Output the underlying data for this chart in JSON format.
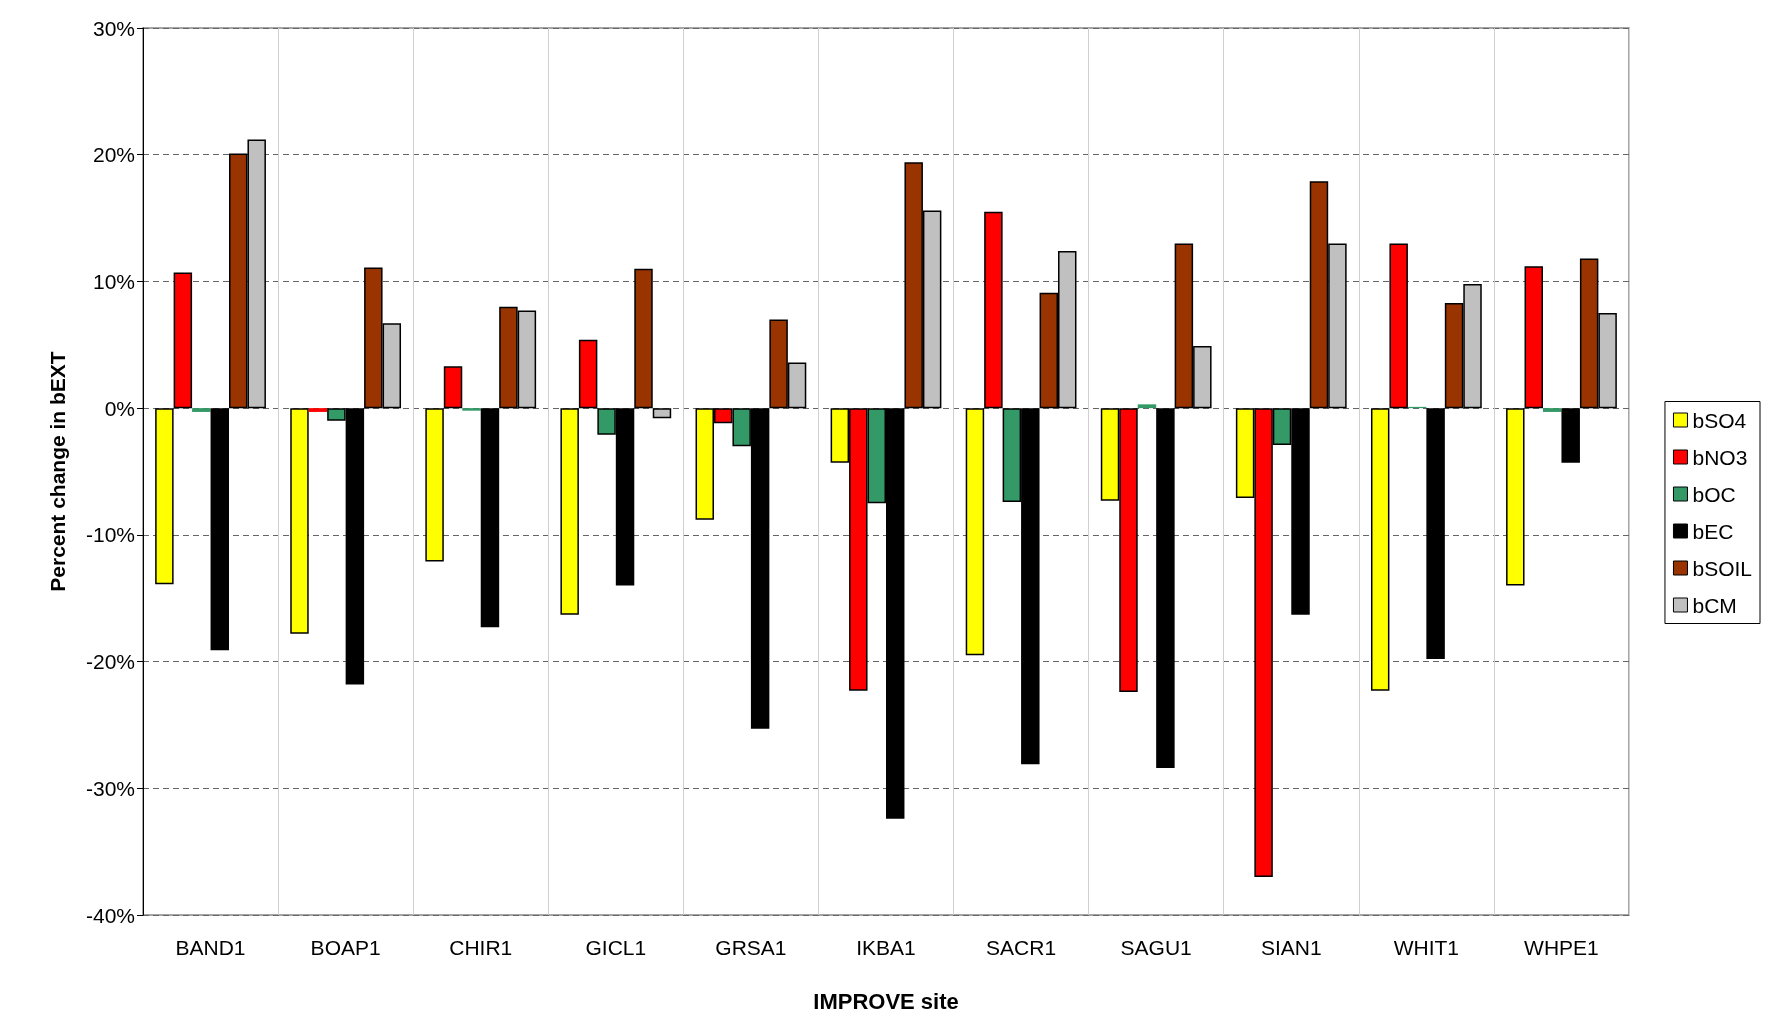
{
  "chart_data": {
    "type": "bar",
    "xlabel": "IMPROVE site",
    "ylabel": "Percent change in bEXT",
    "categories": [
      "BAND1",
      "BOAP1",
      "CHIR1",
      "GICL1",
      "GRSA1",
      "IKBA1",
      "SACR1",
      "SAGU1",
      "SIAN1",
      "WHIT1",
      "WHPE1"
    ],
    "series": [
      {
        "name": "bSO4",
        "color": "#ffff00",
        "values": [
          -13.9,
          -17.8,
          -12.1,
          -16.3,
          -8.8,
          -4.3,
          -19.5,
          -7.3,
          -7.1,
          -22.3,
          -14.0
        ]
      },
      {
        "name": "bNO3",
        "color": "#ff0000",
        "values": [
          10.7,
          -0.3,
          3.3,
          5.4,
          -1.2,
          -22.3,
          15.5,
          -22.4,
          -37.0,
          13.0,
          11.2
        ]
      },
      {
        "name": "bOC",
        "color": "#339966",
        "values": [
          -0.3,
          -1.0,
          -0.2,
          -2.1,
          -3.0,
          -7.5,
          -7.4,
          0.3,
          -2.9,
          0.1,
          -0.3
        ]
      },
      {
        "name": "bEC",
        "color": "#000000",
        "values": [
          -19.1,
          -21.8,
          -17.3,
          -14.0,
          -25.3,
          -32.4,
          -28.1,
          -28.4,
          -16.3,
          -19.8,
          -4.3
        ]
      },
      {
        "name": "bSOIL",
        "color": "#993300",
        "values": [
          20.1,
          11.1,
          8.0,
          11.0,
          7.0,
          19.4,
          9.1,
          13.0,
          17.9,
          8.3,
          11.8
        ]
      },
      {
        "name": "bCM",
        "color": "#c0c0c0",
        "values": [
          21.2,
          6.7,
          7.7,
          -0.8,
          3.6,
          15.6,
          12.4,
          4.9,
          13.0,
          9.8,
          7.5
        ]
      }
    ],
    "ylim": [
      -40,
      30
    ],
    "yticks": [
      {
        "value": -40,
        "label": "-40%"
      },
      {
        "value": -30,
        "label": "-30%"
      },
      {
        "value": -20,
        "label": "-20%"
      },
      {
        "value": -10,
        "label": "-10%"
      },
      {
        "value": 0,
        "label": "0%"
      },
      {
        "value": 10,
        "label": "10%"
      },
      {
        "value": 20,
        "label": "20%"
      },
      {
        "value": 30,
        "label": "30%"
      }
    ],
    "grid": true,
    "legend": "right"
  }
}
